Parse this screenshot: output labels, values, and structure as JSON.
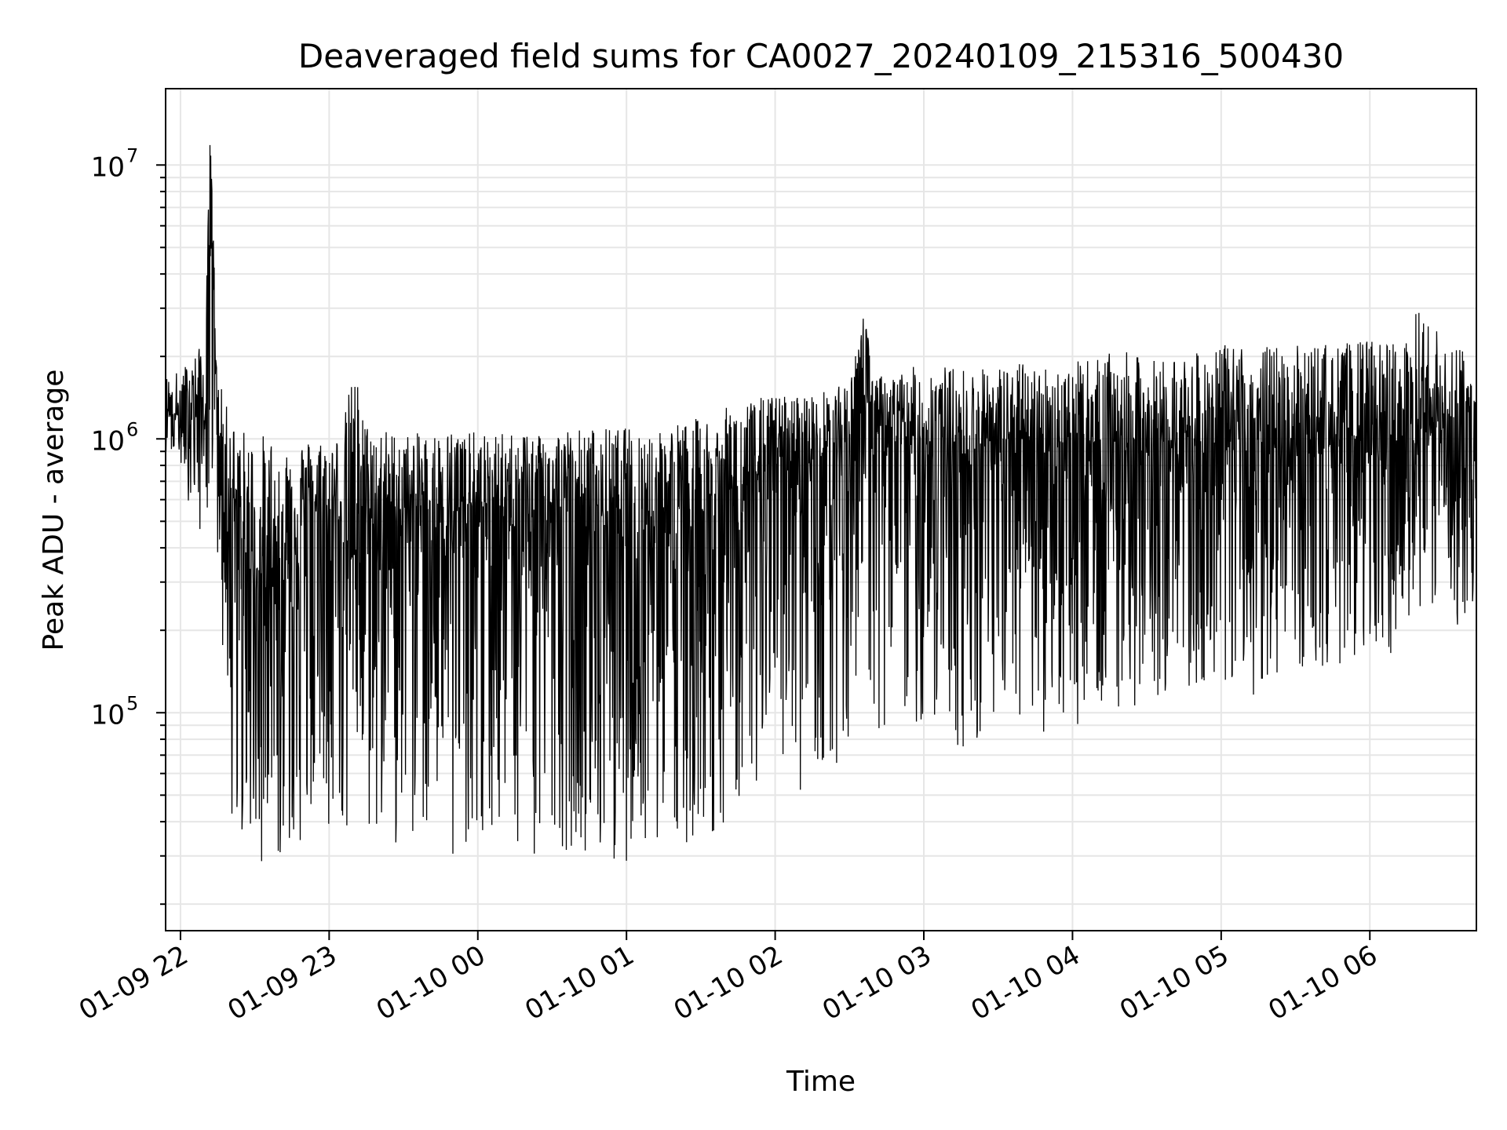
{
  "chart_data": {
    "type": "line",
    "title": "Deaveraged field sums for CA0027_20240109_215316_500430",
    "xlabel": "Time",
    "ylabel": "Peak ADU - average",
    "yscale": "log",
    "xlim": [
      "2024-01-09 21:54",
      "2024-01-10 06:43"
    ],
    "ylim": [
      16000,
      19000000
    ],
    "xticks": [
      {
        "value": "2024-01-09 22:00",
        "label": "01-09 22"
      },
      {
        "value": "2024-01-09 23:00",
        "label": "01-09 23"
      },
      {
        "value": "2024-01-10 00:00",
        "label": "01-10 00"
      },
      {
        "value": "2024-01-10 01:00",
        "label": "01-10 01"
      },
      {
        "value": "2024-01-10 02:00",
        "label": "01-10 02"
      },
      {
        "value": "2024-01-10 03:00",
        "label": "01-10 03"
      },
      {
        "value": "2024-01-10 04:00",
        "label": "01-10 04"
      },
      {
        "value": "2024-01-10 05:00",
        "label": "01-10 05"
      },
      {
        "value": "2024-01-10 06:00",
        "label": "01-10 06"
      }
    ],
    "yticks": [
      {
        "value": 100000,
        "base": "10",
        "exp": "5"
      },
      {
        "value": 1000000,
        "base": "10",
        "exp": "6"
      },
      {
        "value": 10000000,
        "base": "10",
        "exp": "7"
      }
    ],
    "grid": true,
    "line_color": "#000000",
    "grid_color": "#e6e6e6",
    "series": [
      {
        "x": [
          "2024-01-09 21:54",
          "2024-01-09 22:00",
          "2024-01-09 22:05",
          "2024-01-09 22:10",
          "2024-01-09 22:12",
          "2024-01-09 22:15",
          "2024-01-09 22:20",
          "2024-01-09 22:25",
          "2024-01-09 22:30",
          "2024-01-09 22:35",
          "2024-01-09 22:40",
          "2024-01-09 22:45",
          "2024-01-09 22:50",
          "2024-01-09 22:55",
          "2024-01-09 23:00",
          "2024-01-09 23:05",
          "2024-01-09 23:10",
          "2024-01-09 23:15",
          "2024-01-09 23:20",
          "2024-01-09 23:30",
          "2024-01-09 23:40",
          "2024-01-09 23:50",
          "2024-01-10 00:00",
          "2024-01-10 00:10",
          "2024-01-10 00:20",
          "2024-01-10 00:30",
          "2024-01-10 00:40",
          "2024-01-10 00:50",
          "2024-01-10 01:00",
          "2024-01-10 01:10",
          "2024-01-10 01:20",
          "2024-01-10 01:30",
          "2024-01-10 01:40",
          "2024-01-10 01:50",
          "2024-01-10 02:00",
          "2024-01-10 02:10",
          "2024-01-10 02:20",
          "2024-01-10 02:30",
          "2024-01-10 02:36",
          "2024-01-10 02:40",
          "2024-01-10 02:50",
          "2024-01-10 03:00",
          "2024-01-10 03:10",
          "2024-01-10 03:20",
          "2024-01-10 03:30",
          "2024-01-10 03:40",
          "2024-01-10 03:50",
          "2024-01-10 04:00",
          "2024-01-10 04:10",
          "2024-01-10 04:20",
          "2024-01-10 04:30",
          "2024-01-10 04:40",
          "2024-01-10 04:50",
          "2024-01-10 05:00",
          "2024-01-10 05:10",
          "2024-01-10 05:20",
          "2024-01-10 05:30",
          "2024-01-10 05:40",
          "2024-01-10 05:50",
          "2024-01-10 06:00",
          "2024-01-10 06:10",
          "2024-01-10 06:20",
          "2024-01-10 06:30",
          "2024-01-10 06:43"
        ],
        "y": [
          1300000,
          1200000,
          1400000,
          1300000,
          13000000,
          1100000,
          700000,
          400000,
          350000,
          300000,
          400000,
          500000,
          550000,
          600000,
          550000,
          600000,
          600000,
          550000,
          600000,
          550000,
          600000,
          550000,
          600000,
          550000,
          600000,
          550000,
          600000,
          550000,
          600000,
          550000,
          600000,
          550000,
          650000,
          700000,
          850000,
          900000,
          950000,
          1000000,
          2900000,
          1000000,
          1050000,
          1000000,
          950000,
          950000,
          1000000,
          1000000,
          1000000,
          950000,
          1000000,
          1000000,
          950000,
          1000000,
          1000000,
          1000000,
          1000000,
          1000000,
          1050000,
          1000000,
          1050000,
          1000000,
          1050000,
          1000000,
          1100000,
          1100000
        ],
        "low": [
          900000,
          800000,
          500000,
          400000,
          800000,
          300000,
          40000,
          30000,
          28000,
          27000,
          30000,
          30000,
          35000,
          33000,
          30000,
          28000,
          30000,
          30000,
          35000,
          32000,
          33000,
          30000,
          30000,
          28000,
          30000,
          30000,
          32000,
          30000,
          28000,
          30000,
          32000,
          35000,
          38000,
          45000,
          60000,
          50000,
          60000,
          70000,
          200000,
          80000,
          80000,
          90000,
          80000,
          70000,
          75000,
          80000,
          85000,
          90000,
          90000,
          100000,
          110000,
          115000,
          120000,
          120000,
          110000,
          120000,
          130000,
          140000,
          150000,
          160000,
          160000,
          170000,
          180000,
          250000
        ],
        "high": [
          1700000,
          1800000,
          2000000,
          2300000,
          13000000,
          1700000,
          1200000,
          1100000,
          1050000,
          1050000,
          1050000,
          1000000,
          1000000,
          1000000,
          1000000,
          1050000,
          1900000,
          1150000,
          1100000,
          1050000,
          1050000,
          1100000,
          1050000,
          1050000,
          1100000,
          1100000,
          1100000,
          1100000,
          1100000,
          1100000,
          1150000,
          1200000,
          1300000,
          1400000,
          1450000,
          1450000,
          1500000,
          1600000,
          2900000,
          1700000,
          1750000,
          1900000,
          1850000,
          1800000,
          1850000,
          1900000,
          1850000,
          1900000,
          2000000,
          2100000,
          1950000,
          2000000,
          2050000,
          2200000,
          2200000,
          2200000,
          2200000,
          2250000,
          2250000,
          2300000,
          2300000,
          3000000,
          2300000,
          2100000
        ]
      }
    ]
  }
}
